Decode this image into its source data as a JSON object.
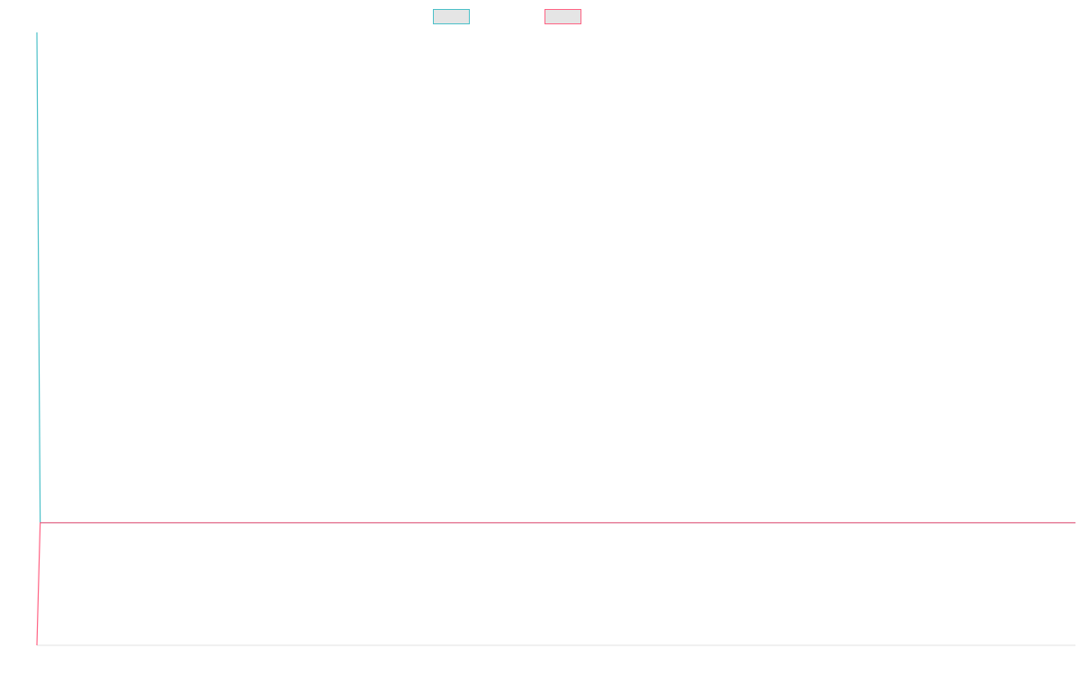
{
  "colors": {
    "background": "#ffffff",
    "series_1": "#4bc0c8",
    "series_2": "#ff6384",
    "legend_fill": "#e5e5e5",
    "axis": "#e0e0e0"
  },
  "chart_data": {
    "type": "line",
    "title": "",
    "xlabel": "",
    "ylabel": "",
    "grid": false,
    "legend": "top-center",
    "x": [
      0,
      1,
      2
    ],
    "xlim": [
      0,
      316
    ],
    "ylim": [
      -1,
      4
    ],
    "series": [
      {
        "name": "",
        "color": "#4bc0c8",
        "values": [
          4,
          0,
          0
        ]
      },
      {
        "name": "",
        "color": "#ff6384",
        "values": [
          -1,
          0,
          0
        ]
      }
    ]
  }
}
